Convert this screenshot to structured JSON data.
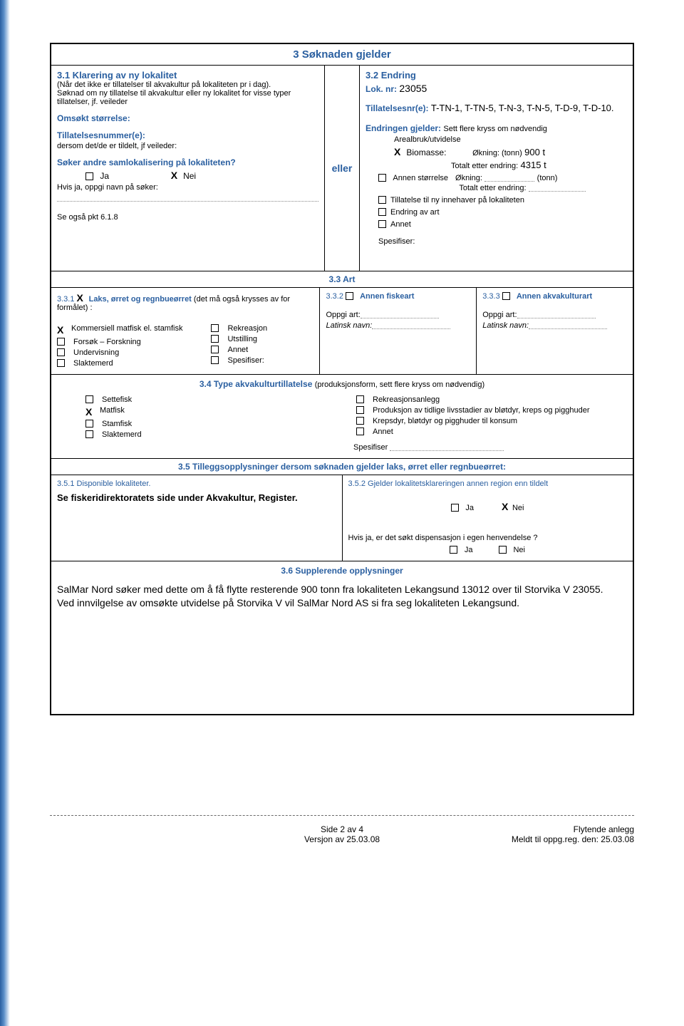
{
  "colors": {
    "accent": "#2a5fa0"
  },
  "section3": {
    "header": "3  Søknaden gjelder",
    "s31": {
      "title": "3.1 Klarering av ny lokalitet",
      "subtitle": "(Når det ikke er tillatelser til akvakultur på lokaliteten pr i dag).\nSøknad om ny tillatelse til akvakultur eller ny lokalitet for visse typer tillatelser, jf. veileder",
      "omsokt_label": "Omsøkt størrelse:",
      "tillatelsesnr_label": "Tillatelsesnummer(e):",
      "tillatelsesnr_sub": "dersom det/de er tildelt, jf veileder:",
      "samlok_q": "Søker andre samlokalisering på lokaliteten?",
      "ja": "Ja",
      "nei": "Nei",
      "samlok_answer": "X",
      "hvis_ja": "Hvis ja, oppgi navn på søker:",
      "se_ogsa": "Se også pkt 6.1.8"
    },
    "eller": "eller",
    "s32": {
      "title": "3.2    Endring",
      "lok_label": "Lok. nr:",
      "lok_value": "23055",
      "tillatelses_label": "Tillatelsesnr(e):",
      "tillatelses_value": "T-TN-1, T-TN-5, T-N-3, T-N-5, T-D-9, T-D-10.",
      "endring_label": "Endringen gjelder:",
      "endring_sub": "Sett flere kryss om nødvendig",
      "areal_label": "Arealbruk/utvidelse",
      "biomasse_checked": "X",
      "biomasse": "Biomasse:",
      "okning_label": "Økning: (tonn)",
      "okning_value": "900 t",
      "totalt_label": "Totalt etter endring:",
      "totalt_value": "4315 t",
      "annen_storrelse": "Annen størrelse",
      "okning2": "Økning:",
      "tonn_suffix": "(tonn)",
      "totalt2": "Totalt etter endring:",
      "tillatelse_ny": "Tillatelse til ny innehaver på lokaliteten",
      "endring_art": "Endring av art",
      "annet": "Annet",
      "spesifiser": "Spesifiser:"
    },
    "s33": {
      "header": "3.3  Art",
      "s331_prefix": "3.3.1",
      "s331_x": "X",
      "s331_label": "Laks, ørret og regnbueørret",
      "s331_paren": "(det må også krysses av for formålet) :",
      "purposes_left": [
        {
          "checked": "X",
          "label": "Kommersiell matfisk el. stamfisk"
        },
        {
          "checked": "",
          "label": "Forsøk – Forskning"
        },
        {
          "checked": "",
          "label": "Undervisning"
        },
        {
          "checked": "",
          "label": "Slaktemerd"
        }
      ],
      "purposes_right": [
        {
          "checked": "",
          "label": "Rekreasjon"
        },
        {
          "checked": "",
          "label": "Utstilling"
        },
        {
          "checked": "",
          "label": "Annet"
        },
        {
          "checked": "",
          "label": "Spesifiser:"
        }
      ],
      "s332_label": "3.3.2",
      "s332_title": "Annen fiskeart",
      "s333_label": "3.3.3",
      "s333_title": "Annen akvakulturart",
      "oppgi_art": "Oppgi art:",
      "latinsk": "Latinsk navn:"
    },
    "s34": {
      "header": "3.4  Type akvakulturtillatelse",
      "paren": "(produksjonsform, sett flere kryss om nødvendig)",
      "left": [
        {
          "checked": "",
          "label": "Settefisk"
        },
        {
          "checked": "X",
          "label": "Matfisk"
        },
        {
          "checked": "",
          "label": "Stamfisk"
        },
        {
          "checked": "",
          "label": "Slaktemerd"
        }
      ],
      "right": [
        {
          "checked": "",
          "label": "Rekreasjonsanlegg"
        },
        {
          "checked": "",
          "label": "Produksjon av tidlige livsstadier av bløtdyr, kreps og pigghuder"
        },
        {
          "checked": "",
          "label": "Krepsdyr, bløtdyr og pigghuder til konsum"
        },
        {
          "checked": "",
          "label": "Annet"
        }
      ],
      "spesifiser": "Spesifiser"
    },
    "s35": {
      "header": "3.5  Tilleggsopplysninger dersom søknaden gjelder laks, ørret eller regnbueørret:",
      "s351_label": "3.5.1  Disponible lokaliteter.",
      "s351_text": "Se fiskeridirektoratets side under Akvakultur, Register.",
      "s352_label": "3.5.2  Gjelder lokalitetsklareringen annen region enn tildelt",
      "ja": "Ja",
      "nei": "Nei",
      "answer": "X",
      "hvis_ja": "Hvis ja, er det søkt dispensasjon i egen henvendelse ?"
    },
    "s36": {
      "header": "3.6  Supplerende opplysninger",
      "body": "SalMar Nord søker med dette om å få flytte resterende 900 tonn fra lokaliteten Lekangsund 13012 over til Storvika V 23055.\nVed innvilgelse av omsøkte utvidelse på Storvika V vil SalMar Nord AS si fra seg lokaliteten Lekangsund."
    }
  },
  "footer": {
    "page": "Side 2 av 4",
    "version": "Versjon av 25.03.08",
    "right1": "Flytende anlegg",
    "right2": "Meldt til oppg.reg. den: 25.03.08"
  }
}
